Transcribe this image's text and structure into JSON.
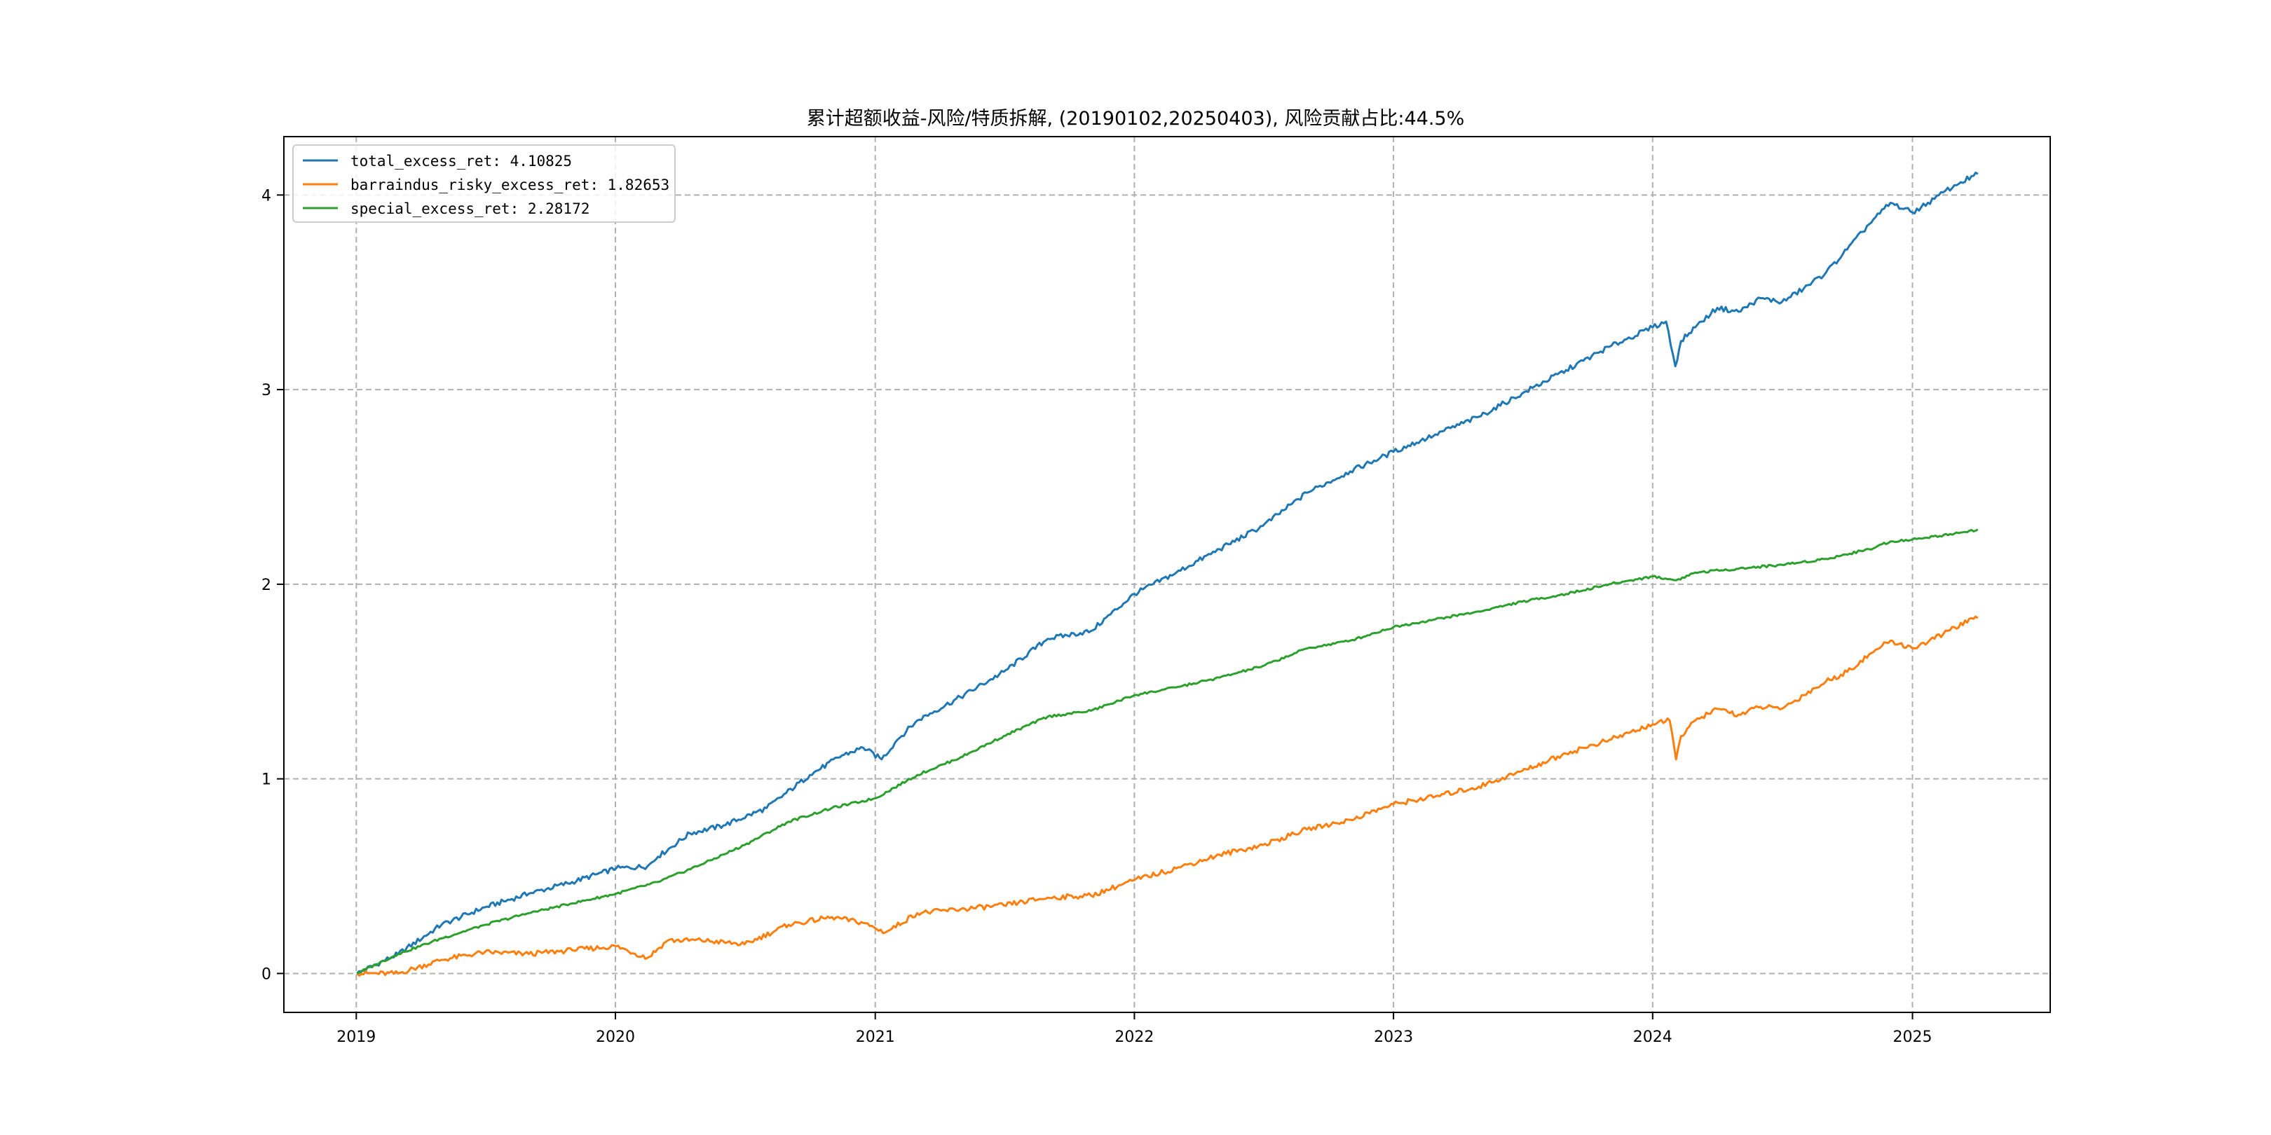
{
  "chart_data": {
    "type": "line",
    "title": "累计超额收益-风险/特质拆解, (20190102,20250403), 风险贡献占比:44.5%",
    "xlabel": "",
    "ylabel": "",
    "x_range": [
      "2018-09-21",
      "2025-07-14"
    ],
    "ylim": [
      -0.2,
      4.3
    ],
    "x_ticks": [
      "2019",
      "2020",
      "2021",
      "2022",
      "2023",
      "2024",
      "2025"
    ],
    "y_ticks": [
      0,
      1,
      2,
      3,
      4
    ],
    "grid": true,
    "legend_position": "top-left",
    "series": [
      {
        "name": "total_excess_ret: 4.10825",
        "color": "#1f77b4",
        "points": [
          [
            "2019-01-02",
            0.0
          ],
          [
            "2019-03-01",
            0.1
          ],
          [
            "2019-05-01",
            0.25
          ],
          [
            "2019-07-01",
            0.34
          ],
          [
            "2019-09-01",
            0.41
          ],
          [
            "2019-11-01",
            0.47
          ],
          [
            "2020-01-02",
            0.54
          ],
          [
            "2020-02-15",
            0.55
          ],
          [
            "2020-03-01",
            0.6
          ],
          [
            "2020-04-15",
            0.72
          ],
          [
            "2020-06-01",
            0.76
          ],
          [
            "2020-08-01",
            0.85
          ],
          [
            "2020-10-01",
            1.02
          ],
          [
            "2020-11-15",
            1.12
          ],
          [
            "2020-12-15",
            1.16
          ],
          [
            "2021-01-10",
            1.1
          ],
          [
            "2021-02-01",
            1.2
          ],
          [
            "2021-03-01",
            1.3
          ],
          [
            "2021-05-01",
            1.42
          ],
          [
            "2021-07-01",
            1.55
          ],
          [
            "2021-09-01",
            1.72
          ],
          [
            "2021-11-01",
            1.76
          ],
          [
            "2022-01-01",
            1.95
          ],
          [
            "2022-03-01",
            2.06
          ],
          [
            "2022-05-01",
            2.18
          ],
          [
            "2022-07-01",
            2.3
          ],
          [
            "2022-09-01",
            2.47
          ],
          [
            "2022-11-01",
            2.58
          ],
          [
            "2023-01-01",
            2.68
          ],
          [
            "2023-03-01",
            2.77
          ],
          [
            "2023-05-01",
            2.86
          ],
          [
            "2023-07-01",
            2.98
          ],
          [
            "2023-09-01",
            3.1
          ],
          [
            "2023-11-01",
            3.22
          ],
          [
            "2024-01-01",
            3.32
          ],
          [
            "2024-01-20",
            3.35
          ],
          [
            "2024-02-02",
            3.12
          ],
          [
            "2024-02-10",
            3.25
          ],
          [
            "2024-03-01",
            3.32
          ],
          [
            "2024-04-01",
            3.42
          ],
          [
            "2024-05-01",
            3.4
          ],
          [
            "2024-06-01",
            3.47
          ],
          [
            "2024-07-01",
            3.45
          ],
          [
            "2024-08-01",
            3.52
          ],
          [
            "2024-09-01",
            3.6
          ],
          [
            "2024-10-01",
            3.72
          ],
          [
            "2024-11-01",
            3.85
          ],
          [
            "2024-12-01",
            3.96
          ],
          [
            "2025-01-01",
            3.91
          ],
          [
            "2025-02-01",
            3.98
          ],
          [
            "2025-03-01",
            4.05
          ],
          [
            "2025-04-03",
            4.10825
          ]
        ]
      },
      {
        "name": "barraindus_risky_excess_ret: 1.82653",
        "color": "#ff7f0e",
        "points": [
          [
            "2019-01-02",
            0.0
          ],
          [
            "2019-03-01",
            0.0
          ],
          [
            "2019-05-01",
            0.07
          ],
          [
            "2019-07-01",
            0.11
          ],
          [
            "2019-09-01",
            0.1
          ],
          [
            "2019-11-01",
            0.12
          ],
          [
            "2020-01-02",
            0.14
          ],
          [
            "2020-02-15",
            0.08
          ],
          [
            "2020-03-15",
            0.17
          ],
          [
            "2020-05-01",
            0.17
          ],
          [
            "2020-07-01",
            0.15
          ],
          [
            "2020-09-01",
            0.25
          ],
          [
            "2020-11-01",
            0.29
          ],
          [
            "2020-12-15",
            0.26
          ],
          [
            "2021-01-15",
            0.21
          ],
          [
            "2021-03-01",
            0.31
          ],
          [
            "2021-05-01",
            0.33
          ],
          [
            "2021-07-01",
            0.35
          ],
          [
            "2021-09-01",
            0.39
          ],
          [
            "2021-11-01",
            0.4
          ],
          [
            "2022-01-01",
            0.48
          ],
          [
            "2022-03-01",
            0.54
          ],
          [
            "2022-05-01",
            0.61
          ],
          [
            "2022-07-01",
            0.66
          ],
          [
            "2022-09-01",
            0.74
          ],
          [
            "2022-11-01",
            0.79
          ],
          [
            "2023-01-01",
            0.87
          ],
          [
            "2023-03-01",
            0.91
          ],
          [
            "2023-05-01",
            0.96
          ],
          [
            "2023-07-01",
            1.04
          ],
          [
            "2023-09-01",
            1.13
          ],
          [
            "2023-11-01",
            1.2
          ],
          [
            "2024-01-01",
            1.28
          ],
          [
            "2024-01-25",
            1.3
          ],
          [
            "2024-02-03",
            1.1
          ],
          [
            "2024-02-10",
            1.22
          ],
          [
            "2024-03-01",
            1.3
          ],
          [
            "2024-04-01",
            1.36
          ],
          [
            "2024-05-01",
            1.33
          ],
          [
            "2024-06-01",
            1.37
          ],
          [
            "2024-07-01",
            1.36
          ],
          [
            "2024-08-01",
            1.43
          ],
          [
            "2024-09-01",
            1.5
          ],
          [
            "2024-10-01",
            1.55
          ],
          [
            "2024-11-01",
            1.64
          ],
          [
            "2024-12-01",
            1.71
          ],
          [
            "2025-01-01",
            1.67
          ],
          [
            "2025-02-01",
            1.72
          ],
          [
            "2025-03-01",
            1.78
          ],
          [
            "2025-04-03",
            1.82653
          ]
        ]
      },
      {
        "name": "special_excess_ret: 2.28172",
        "color": "#2ca02c",
        "points": [
          [
            "2019-01-02",
            0.0
          ],
          [
            "2019-03-01",
            0.1
          ],
          [
            "2019-05-01",
            0.18
          ],
          [
            "2019-07-01",
            0.25
          ],
          [
            "2019-09-01",
            0.31
          ],
          [
            "2019-11-01",
            0.36
          ],
          [
            "2020-01-02",
            0.41
          ],
          [
            "2020-03-01",
            0.47
          ],
          [
            "2020-05-01",
            0.56
          ],
          [
            "2020-07-01",
            0.66
          ],
          [
            "2020-09-01",
            0.78
          ],
          [
            "2020-11-01",
            0.85
          ],
          [
            "2021-01-01",
            0.9
          ],
          [
            "2021-03-01",
            1.02
          ],
          [
            "2021-05-01",
            1.11
          ],
          [
            "2021-07-01",
            1.22
          ],
          [
            "2021-09-01",
            1.32
          ],
          [
            "2021-11-01",
            1.35
          ],
          [
            "2022-01-01",
            1.43
          ],
          [
            "2022-03-01",
            1.47
          ],
          [
            "2022-05-01",
            1.52
          ],
          [
            "2022-07-01",
            1.58
          ],
          [
            "2022-09-01",
            1.67
          ],
          [
            "2022-11-01",
            1.71
          ],
          [
            "2023-01-01",
            1.78
          ],
          [
            "2023-03-01",
            1.82
          ],
          [
            "2023-05-01",
            1.86
          ],
          [
            "2023-07-01",
            1.91
          ],
          [
            "2023-09-01",
            1.95
          ],
          [
            "2023-11-01",
            2.0
          ],
          [
            "2024-01-01",
            2.04
          ],
          [
            "2024-02-03",
            2.02
          ],
          [
            "2024-03-01",
            2.06
          ],
          [
            "2024-05-01",
            2.08
          ],
          [
            "2024-07-01",
            2.1
          ],
          [
            "2024-09-01",
            2.13
          ],
          [
            "2024-11-01",
            2.18
          ],
          [
            "2024-12-01",
            2.22
          ],
          [
            "2025-01-01",
            2.23
          ],
          [
            "2025-03-01",
            2.26
          ],
          [
            "2025-04-03",
            2.28172
          ]
        ]
      }
    ]
  }
}
